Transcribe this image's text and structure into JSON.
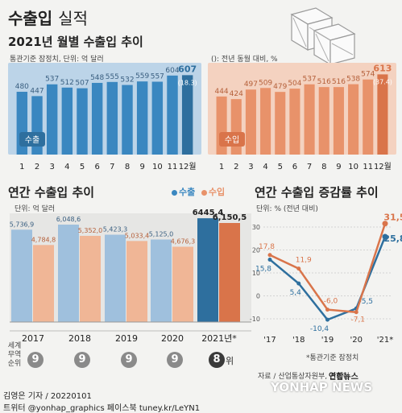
{
  "header": {
    "title_bold": "수출입",
    "title_light": "실적"
  },
  "monthly": {
    "title": "2021년 월별 수출입 추이",
    "note": "통관기준 잠정치, 단위: 억 달러",
    "legend_note": "(): 전년 동월 대비, %"
  },
  "annual": {
    "title": "연간 수출입 추이",
    "unit": "단위: 억 달러",
    "legend_export": "수출",
    "legend_import": "수입"
  },
  "growth": {
    "title": "연간 수출입 증감률 추이",
    "unit": "단위: % (전년 대비)",
    "footnote": "*통관기준 잠정치"
  },
  "rank": {
    "label": "세계 무역 순위",
    "values": [
      "9",
      "9",
      "9",
      "9",
      "8"
    ],
    "suffix": "위"
  },
  "footer": {
    "source": "자료 / 산업통상자원부, 관세청",
    "byline": "김영은 기자 / 20220101",
    "social": "트위터 @yonhap_graphics  페이스북 tuney.kr/LeYN1",
    "agency": "연합뉴스",
    "watermark": "YONHAP NEWS"
  },
  "colors": {
    "export": "#3a87c0",
    "export_dark": "#2e6f9e",
    "import": "#e8926a",
    "import_dark": "#d9744a",
    "export_bg": "#bcd4e8",
    "import_bg": "#f4d2c0",
    "rank_gray": "#8a8a8a",
    "rank_dark": "#3a3a3a"
  },
  "chart_data": [
    {
      "type": "bar",
      "title": "수출",
      "categories": [
        "1",
        "2",
        "3",
        "4",
        "5",
        "6",
        "7",
        "8",
        "9",
        "10",
        "11",
        "12월"
      ],
      "values": [
        480,
        447,
        537,
        512,
        507,
        548,
        555,
        532,
        559,
        557,
        604,
        607
      ],
      "annotations": {
        "12월": "(18.3)"
      }
    },
    {
      "type": "bar",
      "title": "수입",
      "categories": [
        "1",
        "2",
        "3",
        "4",
        "5",
        "6",
        "7",
        "8",
        "9",
        "10",
        "11",
        "12월"
      ],
      "values": [
        444,
        424,
        497,
        509,
        479,
        504,
        537,
        516,
        516,
        538,
        574,
        613
      ],
      "annotations": {
        "12월": "(37.4)"
      }
    },
    {
      "type": "bar",
      "title": "연간 수출입 추이",
      "categories": [
        "2017",
        "2018",
        "2019",
        "2020",
        "2021년*"
      ],
      "series": [
        {
          "name": "수출",
          "values": [
            5736.9,
            6048.6,
            5423.3,
            5125.0,
            6445.4
          ],
          "labels": [
            "5,736,9",
            "6,048,6",
            "5,423,3",
            "5,125,0",
            "6445,4"
          ]
        },
        {
          "name": "수입",
          "values": [
            4784.8,
            5352.0,
            5033.4,
            4676.3,
            6150.5
          ],
          "labels": [
            "4,784,8",
            "5,352,0",
            "5,033,4",
            "4,676,3",
            "6,150,5"
          ]
        }
      ]
    },
    {
      "type": "line",
      "title": "연간 수출입 증감률 추이",
      "categories": [
        "'17",
        "'18",
        "'19",
        "'20",
        "'21*"
      ],
      "ylim": [
        -10,
        30
      ],
      "yticks": [
        "30",
        "20",
        "10",
        "0",
        "-10"
      ],
      "series": [
        {
          "name": "수출",
          "values": [
            15.8,
            5.4,
            -10.4,
            -5.5,
            25.8
          ],
          "labels": [
            "15,8",
            "5,4",
            "-10,4",
            "-5,5",
            "25,8"
          ]
        },
        {
          "name": "수입",
          "values": [
            17.8,
            11.9,
            -6.0,
            -7.1,
            31.5
          ],
          "labels": [
            "17,8",
            "11,9",
            "-6,0",
            "-7,1",
            "31,5"
          ]
        }
      ]
    }
  ]
}
